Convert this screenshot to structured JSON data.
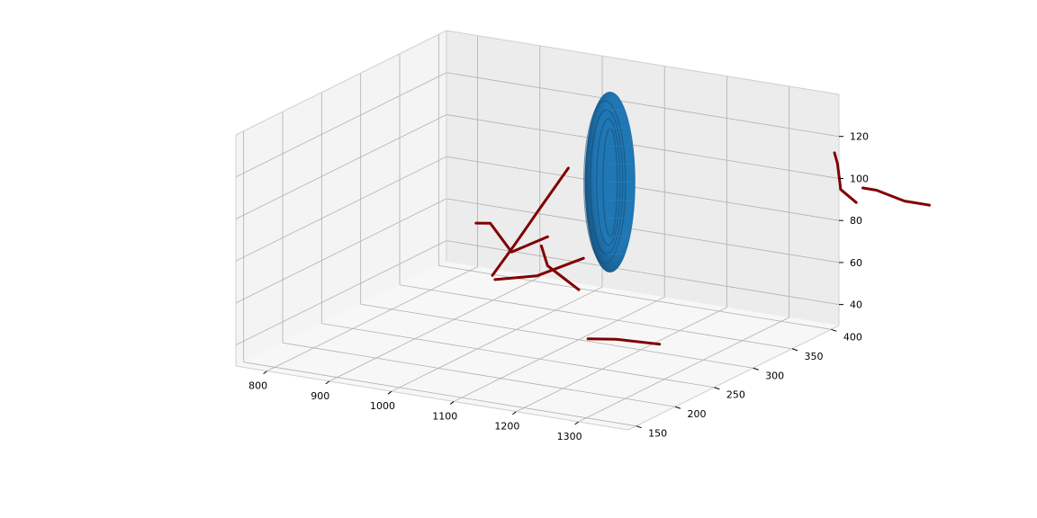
{
  "chart_data": {
    "type": "3d-line-surface",
    "title": "",
    "xlabel": "",
    "ylabel": "",
    "zlabel": "",
    "xlim": [
      750,
      1380
    ],
    "ylim": [
      140,
      410
    ],
    "zlim": [
      30,
      140
    ],
    "x_ticks": [
      "800",
      "900",
      "1000",
      "1100",
      "1200",
      "1300"
    ],
    "y_ticks": [
      "150",
      "200",
      "250",
      "300",
      "350",
      "400"
    ],
    "z_ticks": [
      "40",
      "60",
      "80",
      "100",
      "120"
    ],
    "grid": true,
    "colors": {
      "surface": "#1f77b4",
      "surface_dark": "#14476f",
      "lines": "#800000",
      "pane_left": "#f4f4f4",
      "pane_back": "#ececec",
      "pane_floor": "#f7f7f7"
    },
    "surface": {
      "shape": "ellipsoid",
      "center": [
        1025,
        400,
        83
      ],
      "radii": [
        32,
        4,
        43
      ]
    },
    "series": [
      {
        "points": [
          [
            835,
            380,
            58
          ],
          [
            858,
            380,
            59
          ],
          [
            892,
            380,
            47
          ],
          [
            950,
            380,
            57
          ]
        ]
      },
      {
        "points": [
          [
            880,
            365,
            38
          ],
          [
            915,
            365,
            54
          ],
          [
            955,
            365,
            73
          ],
          [
            985,
            365,
            87
          ],
          [
            1002,
            365,
            95
          ]
        ]
      },
      {
        "points": [
          [
            878,
            370,
            35
          ],
          [
            945,
            370,
            40
          ],
          [
            995,
            370,
            48
          ],
          [
            1020,
            370,
            52
          ]
        ]
      },
      {
        "points": [
          [
            990,
            340,
            62
          ],
          [
            1000,
            340,
            53
          ],
          [
            1050,
            340,
            44
          ]
        ]
      },
      {
        "points": [
          [
            1140,
            280,
            36
          ],
          [
            1185,
            280,
            38
          ],
          [
            1255,
            280,
            39
          ]
        ]
      },
      {
        "points": [
          [
            1235,
            520,
            85
          ],
          [
            1240,
            520,
            80
          ],
          [
            1245,
            520,
            68
          ],
          [
            1270,
            520,
            63
          ]
        ]
      },
      {
        "points": [
          [
            1268,
            530,
            68
          ],
          [
            1290,
            530,
            68
          ],
          [
            1335,
            530,
            65
          ],
          [
            1375,
            530,
            65
          ]
        ]
      }
    ]
  }
}
